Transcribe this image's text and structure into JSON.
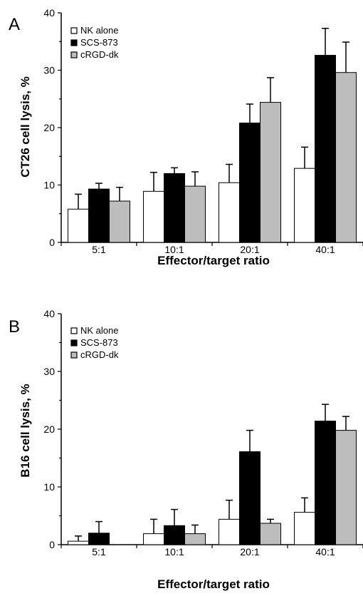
{
  "chart_data": [
    {
      "type": "bar",
      "panel_label": "A",
      "categories": [
        "5:1",
        "10:1",
        "20:1",
        "40:1"
      ],
      "series": [
        {
          "name": "NK alone",
          "color": "#ffffff",
          "values": [
            5.8,
            8.9,
            10.4,
            12.9
          ],
          "errors": [
            2.6,
            3.3,
            3.2,
            3.7
          ]
        },
        {
          "name": "SCS-873",
          "color": "#000000",
          "values": [
            9.3,
            12.0,
            20.8,
            32.6
          ],
          "errors": [
            1.0,
            1.0,
            3.3,
            4.7
          ]
        },
        {
          "name": "cRGD-dk",
          "color": "#bdbdbd",
          "values": [
            7.2,
            9.8,
            24.4,
            29.6
          ],
          "errors": [
            2.4,
            2.5,
            4.3,
            5.3
          ]
        }
      ],
      "xlabel": "Effector/target ratio",
      "ylabel": "CT26 cell lysis, %",
      "ylim": [
        0,
        40
      ],
      "yticks": [
        "0",
        "10",
        "20",
        "30",
        "40"
      ],
      "legend_position": "top-left",
      "grid": false
    },
    {
      "type": "bar",
      "panel_label": "B",
      "categories": [
        "5:1",
        "10:1",
        "20:1",
        "40:1"
      ],
      "series": [
        {
          "name": "NK alone",
          "color": "#ffffff",
          "values": [
            0.6,
            1.9,
            4.4,
            5.6
          ],
          "errors": [
            0.9,
            2.5,
            3.3,
            2.5
          ]
        },
        {
          "name": "SCS-873",
          "color": "#000000",
          "values": [
            2.0,
            3.3,
            16.1,
            21.4
          ],
          "errors": [
            2.0,
            2.8,
            3.7,
            2.9
          ]
        },
        {
          "name": "cRGD-dk",
          "color": "#bdbdbd",
          "values": [
            0.0,
            1.9,
            3.7,
            19.8
          ],
          "errors": [
            0.0,
            1.5,
            0.7,
            2.4
          ]
        }
      ],
      "xlabel": "Effector/target ratio",
      "ylabel": "B16 cell lysis, %",
      "ylim": [
        0,
        40
      ],
      "yticks": [
        "0",
        "10",
        "20",
        "30",
        "40"
      ],
      "legend_position": "top-left",
      "grid": false
    }
  ]
}
